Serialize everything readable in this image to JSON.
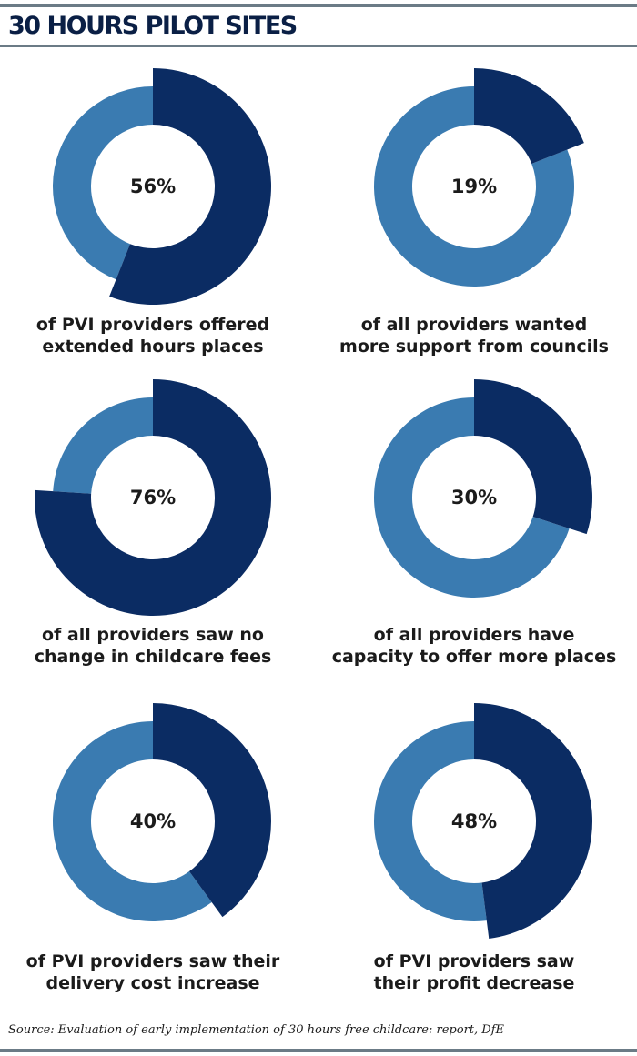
{
  "title": "30 HOURS PILOT SITES",
  "source": "Source: Evaluation of early implementation of 30 hours free childcare: report, DfE",
  "colors": {
    "highlight": "#0b2c63",
    "remainder": "#3a7bb1"
  },
  "chart_data": [
    {
      "type": "pie",
      "value": 56,
      "label": "56%",
      "caption": [
        "of PVI providers offered",
        "extended hours places"
      ]
    },
    {
      "type": "pie",
      "value": 19,
      "label": "19%",
      "caption": [
        "of all providers wanted",
        "more support from councils"
      ]
    },
    {
      "type": "pie",
      "value": 76,
      "label": "76%",
      "caption": [
        "of all providers saw no",
        "change in childcare fees"
      ]
    },
    {
      "type": "pie",
      "value": 30,
      "label": "30%",
      "caption": [
        "of all providers have",
        "capacity to offer more places"
      ]
    },
    {
      "type": "pie",
      "value": 40,
      "label": "40%",
      "caption": [
        "of PVI providers saw their",
        "delivery cost increase"
      ]
    },
    {
      "type": "pie",
      "value": 48,
      "label": "48%",
      "caption": [
        "of PVI providers saw",
        "their profit decrease"
      ]
    }
  ]
}
